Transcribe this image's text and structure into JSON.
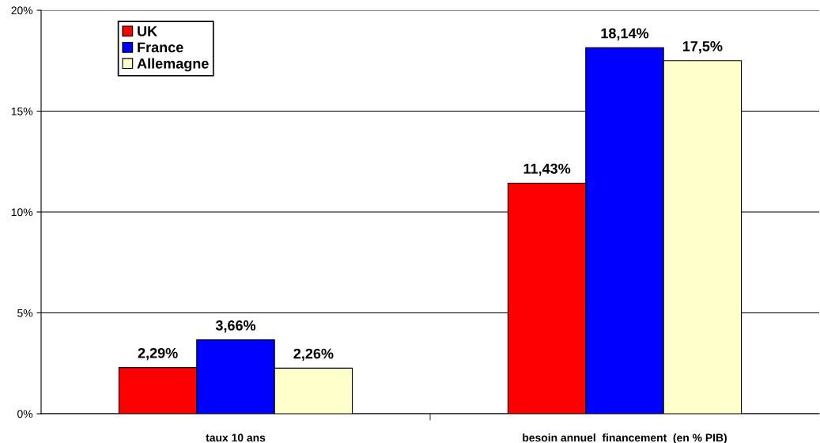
{
  "chart_data": {
    "type": "bar",
    "categories": [
      "taux 10 ans",
      "besoin annuel  financement  (en % PIB)"
    ],
    "series": [
      {
        "name": "UK",
        "color": "#ff0000",
        "values": [
          2.29,
          11.43
        ],
        "value_labels": [
          "2,29%",
          "11,43%"
        ]
      },
      {
        "name": "France",
        "color": "#0000ff",
        "values": [
          3.66,
          18.14
        ],
        "value_labels": [
          "3,66%",
          "18,14%"
        ]
      },
      {
        "name": "Allemagne",
        "color": "#ffffcc",
        "values": [
          2.26,
          17.5
        ],
        "value_labels": [
          "2,26%",
          "17,5%"
        ]
      }
    ],
    "ylim": [
      0,
      20
    ],
    "yticks": [
      {
        "value": 0,
        "label": "0%"
      },
      {
        "value": 5,
        "label": "5%"
      },
      {
        "value": 10,
        "label": "10%"
      },
      {
        "value": 15,
        "label": "15%"
      },
      {
        "value": 20,
        "label": "20%"
      }
    ],
    "grid": "y",
    "legend": "top left"
  }
}
